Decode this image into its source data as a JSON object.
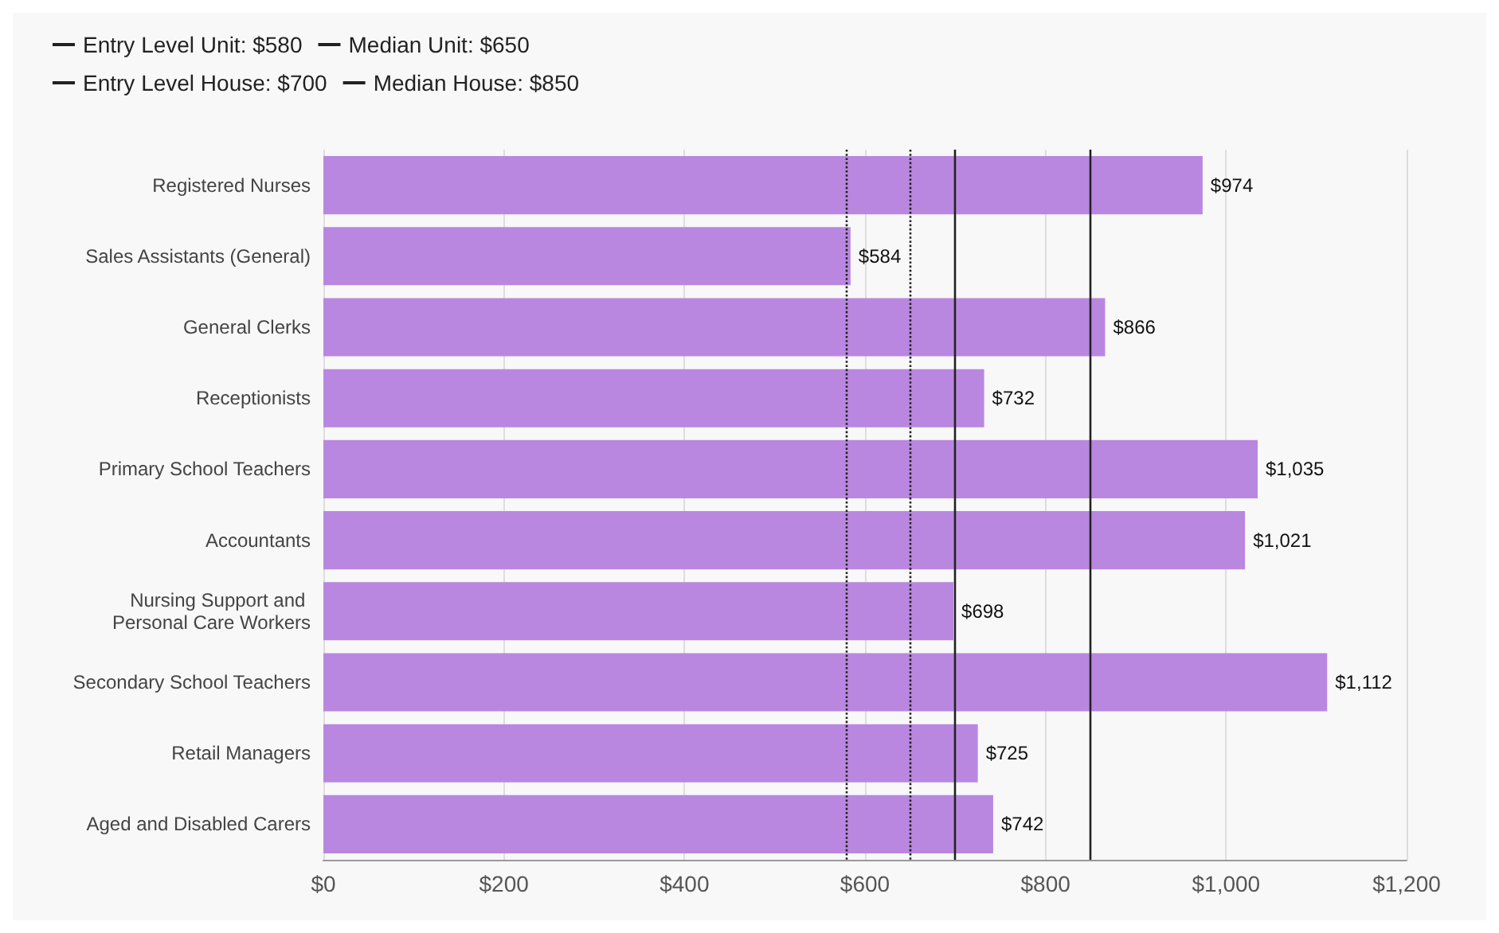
{
  "chart_data": {
    "type": "bar",
    "orientation": "horizontal",
    "categories": [
      "Registered Nurses",
      "Sales Assistants (General)",
      "General Clerks",
      "Receptionists",
      "Primary School Teachers",
      "Accountants",
      "Nursing Support and Personal Care Workers",
      "Secondary School Teachers",
      "Retail Managers",
      "Aged and Disabled Carers"
    ],
    "values": [
      974,
      584,
      866,
      732,
      1035,
      1021,
      698,
      1112,
      725,
      742
    ],
    "value_labels": [
      "$974",
      "$584",
      "$866",
      "$732",
      "$1,035",
      "$1,021",
      "$698",
      "$1,112",
      "$725",
      "$742"
    ],
    "color": "#b987e0",
    "xlim": [
      0,
      1200
    ],
    "xticks": [
      {
        "value": 0,
        "label": "$0"
      },
      {
        "value": 200,
        "label": "$200"
      },
      {
        "value": 400,
        "label": "$400"
      },
      {
        "value": 600,
        "label": "$600"
      },
      {
        "value": 800,
        "label": "$800"
      },
      {
        "value": 1000,
        "label": "$1,000"
      },
      {
        "value": 1200,
        "label": "$1,200"
      }
    ],
    "grid": "x",
    "legend": "top left",
    "ref_lines": [
      {
        "axis": "x",
        "value": 580,
        "label": "Entry Level Unit: $580",
        "line_style": "dotted",
        "color": "#222222"
      },
      {
        "axis": "x",
        "value": 650,
        "label": "Median Unit: $650",
        "line_style": "dotted",
        "color": "#222222"
      },
      {
        "axis": "x",
        "value": 700,
        "label": "Entry Level House: $700",
        "line_style": "solid",
        "color": "#222222"
      },
      {
        "axis": "x",
        "value": 850,
        "label": "Median House: $850",
        "line_style": "solid",
        "color": "#222222"
      }
    ]
  }
}
